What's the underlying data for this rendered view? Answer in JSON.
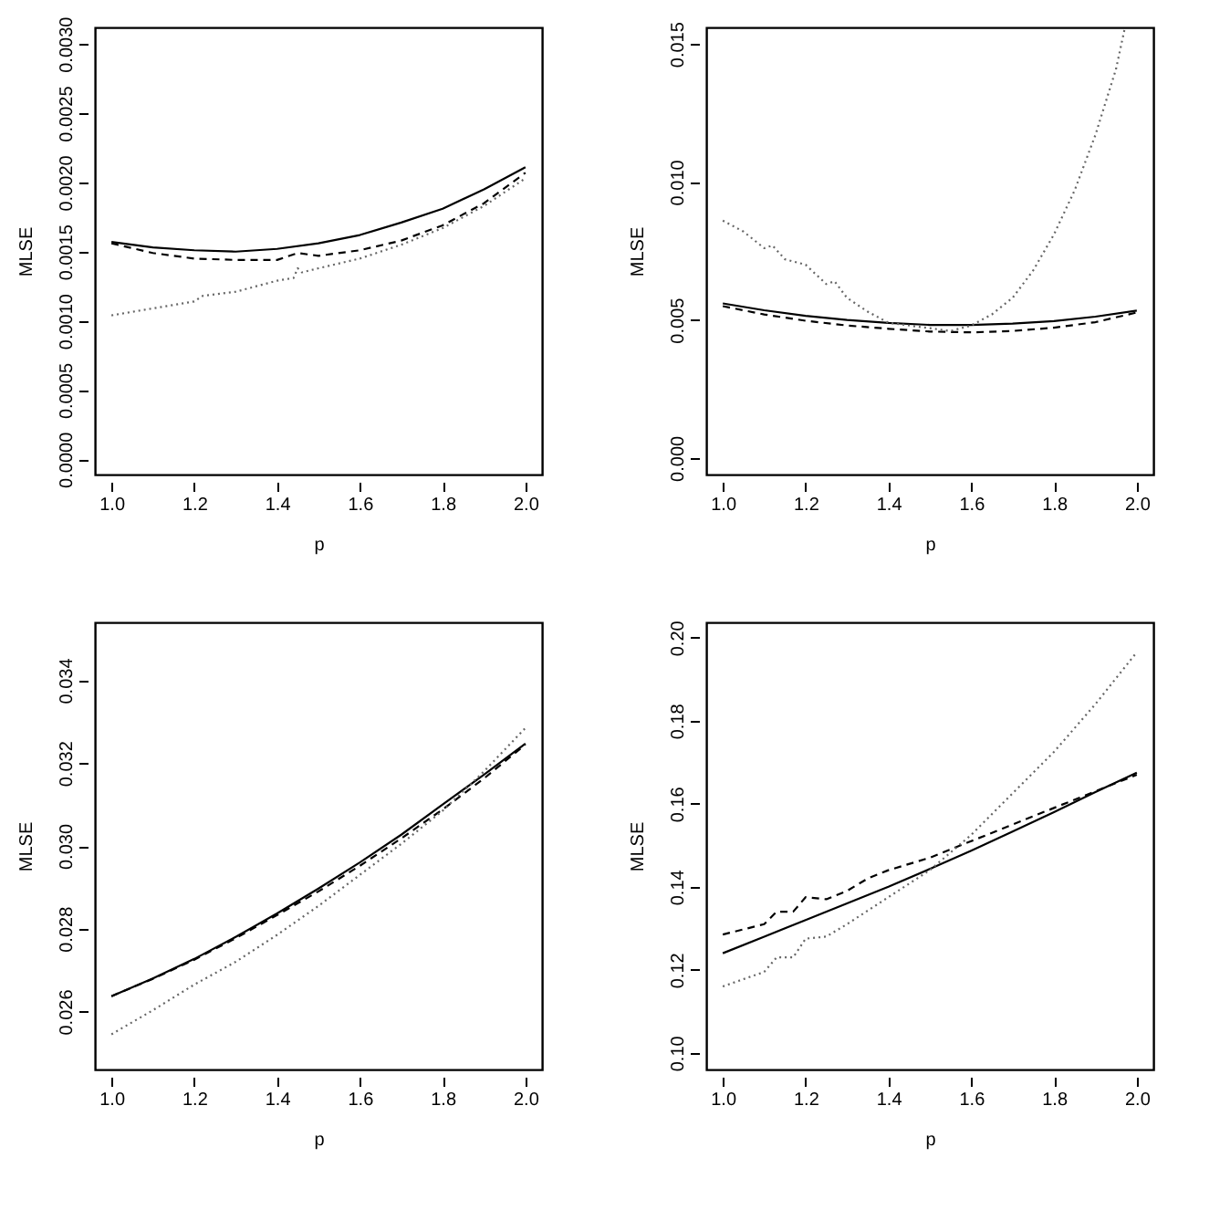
{
  "chart_data": [
    {
      "type": "line",
      "xlabel": "p",
      "ylabel": "MLSE",
      "xlim": [
        0.96,
        2.04
      ],
      "ylim": [
        -0.00011,
        0.00312
      ],
      "xticks": [
        {
          "value": 1.0,
          "label": "1.0"
        },
        {
          "value": 1.2,
          "label": "1.2"
        },
        {
          "value": 1.4,
          "label": "1.4"
        },
        {
          "value": 1.6,
          "label": "1.6"
        },
        {
          "value": 1.8,
          "label": "1.8"
        },
        {
          "value": 2.0,
          "label": "2.0"
        }
      ],
      "yticks": [
        {
          "value": 0,
          "label": "0.0000"
        },
        {
          "value": 0.0005,
          "label": "0.0005"
        },
        {
          "value": 0.001,
          "label": "0.0010"
        },
        {
          "value": 0.0015,
          "label": "0.0015"
        },
        {
          "value": 0.002,
          "label": "0.0020"
        },
        {
          "value": 0.0025,
          "label": "0.0025"
        },
        {
          "value": 0.003,
          "label": "0.0030"
        }
      ],
      "grid": false,
      "legend": false,
      "marker": "none",
      "series": [
        {
          "color": "#000000",
          "line_style": "solid",
          "x": [
            1.0,
            1.1,
            1.2,
            1.3,
            1.4,
            1.5,
            1.6,
            1.7,
            1.8,
            1.9,
            2.0
          ],
          "values": [
            0.00157,
            0.00153,
            0.00151,
            0.0015,
            0.00152,
            0.00156,
            0.00162,
            0.00171,
            0.00181,
            0.00195,
            0.00211
          ]
        },
        {
          "color": "#000000",
          "line_style": "dashed",
          "x": [
            1.0,
            1.1,
            1.2,
            1.3,
            1.4,
            1.45,
            1.5,
            1.6,
            1.7,
            1.8,
            1.9,
            2.0
          ],
          "values": [
            0.00156,
            0.00149,
            0.00145,
            0.00144,
            0.00144,
            0.00149,
            0.00147,
            0.00151,
            0.00158,
            0.00169,
            0.00185,
            0.00207
          ]
        },
        {
          "color": "#666666",
          "line_style": "dotted",
          "x": [
            1.0,
            1.1,
            1.2,
            1.22,
            1.3,
            1.4,
            1.44,
            1.45,
            1.46,
            1.5,
            1.6,
            1.7,
            1.8,
            1.9,
            2.0
          ],
          "values": [
            0.00104,
            0.00109,
            0.00114,
            0.00118,
            0.00121,
            0.00129,
            0.00131,
            0.00138,
            0.00135,
            0.00138,
            0.00145,
            0.00155,
            0.00167,
            0.00183,
            0.00203
          ]
        }
      ]
    },
    {
      "type": "line",
      "xlabel": "p",
      "ylabel": "MLSE",
      "xlim": [
        0.96,
        2.04
      ],
      "ylim": [
        -0.0006,
        0.0156
      ],
      "xticks": [
        {
          "value": 1.0,
          "label": "1.0"
        },
        {
          "value": 1.2,
          "label": "1.2"
        },
        {
          "value": 1.4,
          "label": "1.4"
        },
        {
          "value": 1.6,
          "label": "1.6"
        },
        {
          "value": 1.8,
          "label": "1.8"
        },
        {
          "value": 2.0,
          "label": "2.0"
        }
      ],
      "yticks": [
        {
          "value": 0,
          "label": "0.000"
        },
        {
          "value": 0.005,
          "label": "0.005"
        },
        {
          "value": 0.01,
          "label": "0.010"
        },
        {
          "value": 0.015,
          "label": "0.015"
        }
      ],
      "grid": false,
      "legend": false,
      "marker": "none",
      "series": [
        {
          "color": "#000000",
          "line_style": "solid",
          "x": [
            1.0,
            1.1,
            1.2,
            1.3,
            1.4,
            1.5,
            1.6,
            1.7,
            1.8,
            1.9,
            2.0
          ],
          "values": [
            0.0056,
            0.00535,
            0.00515,
            0.005,
            0.00489,
            0.00482,
            0.00482,
            0.00487,
            0.00496,
            0.00512,
            0.00534
          ]
        },
        {
          "color": "#000000",
          "line_style": "dashed",
          "x": [
            1.0,
            1.1,
            1.2,
            1.3,
            1.4,
            1.5,
            1.6,
            1.7,
            1.8,
            1.9,
            2.0
          ],
          "values": [
            0.0055,
            0.0052,
            0.00497,
            0.0048,
            0.00468,
            0.00458,
            0.00455,
            0.0046,
            0.00472,
            0.00492,
            0.00527
          ]
        },
        {
          "color": "#666666",
          "line_style": "dotted",
          "x": [
            1.0,
            1.05,
            1.1,
            1.12,
            1.15,
            1.2,
            1.25,
            1.27,
            1.3,
            1.35,
            1.4,
            1.5,
            1.55,
            1.6,
            1.65,
            1.7,
            1.75,
            1.8,
            1.85,
            1.9,
            1.95,
            1.97
          ],
          "values": [
            0.0086,
            0.0082,
            0.0076,
            0.0077,
            0.0072,
            0.007,
            0.0063,
            0.0064,
            0.0058,
            0.0053,
            0.0049,
            0.0047,
            0.0046,
            0.0048,
            0.0052,
            0.0058,
            0.0068,
            0.0081,
            0.0097,
            0.0117,
            0.0141,
            0.0155
          ]
        }
      ]
    },
    {
      "type": "line",
      "xlabel": "p",
      "ylabel": "MLSE",
      "xlim": [
        0.96,
        2.04
      ],
      "ylim": [
        0.0246,
        0.0354
      ],
      "xticks": [
        {
          "value": 1.0,
          "label": "1.0"
        },
        {
          "value": 1.2,
          "label": "1.2"
        },
        {
          "value": 1.4,
          "label": "1.4"
        },
        {
          "value": 1.6,
          "label": "1.6"
        },
        {
          "value": 1.8,
          "label": "1.8"
        },
        {
          "value": 2.0,
          "label": "2.0"
        }
      ],
      "yticks": [
        0.026,
        0.028,
        {
          "value": 0.03,
          "label": "0.030"
        },
        0.032,
        0.034
      ],
      "grid": false,
      "legend": false,
      "marker": "none",
      "series": [
        {
          "color": "#000000",
          "line_style": "solid",
          "x": [
            1.0,
            1.1,
            1.2,
            1.3,
            1.4,
            1.5,
            1.6,
            1.7,
            1.8,
            1.9,
            2.0
          ],
          "values": [
            0.02637,
            0.0268,
            0.02727,
            0.0278,
            0.02837,
            0.02897,
            0.0296,
            0.03027,
            0.031,
            0.03172,
            0.03247
          ]
        },
        {
          "color": "#000000",
          "line_style": "dashed",
          "x": [
            1.0,
            1.1,
            1.2,
            1.3,
            1.4,
            1.5,
            1.6,
            1.7,
            1.8,
            1.9,
            2.0
          ],
          "values": [
            0.02637,
            0.02679,
            0.02725,
            0.02777,
            0.02833,
            0.0289,
            0.02952,
            0.03018,
            0.03088,
            0.03163,
            0.03245
          ]
        },
        {
          "color": "#666666",
          "line_style": "dotted",
          "x": [
            1.0,
            1.1,
            1.2,
            1.3,
            1.4,
            1.5,
            1.6,
            1.7,
            1.8,
            1.9,
            2.0
          ],
          "values": [
            0.02545,
            0.02603,
            0.02665,
            0.0272,
            0.02785,
            0.02855,
            0.0293,
            0.03005,
            0.03085,
            0.0318,
            0.03285
          ]
        }
      ]
    },
    {
      "type": "line",
      "xlabel": "p",
      "ylabel": "MLSE",
      "xlim": [
        0.96,
        2.04
      ],
      "ylim": [
        0.096,
        0.2037
      ],
      "xticks": [
        {
          "value": 1.0,
          "label": "1.0"
        },
        {
          "value": 1.2,
          "label": "1.2"
        },
        {
          "value": 1.4,
          "label": "1.4"
        },
        {
          "value": 1.6,
          "label": "1.6"
        },
        {
          "value": 1.8,
          "label": "1.8"
        },
        {
          "value": 2.0,
          "label": "2.0"
        }
      ],
      "yticks": [
        {
          "value": 0.1,
          "label": "0.10"
        },
        0.12,
        0.14,
        0.16,
        0.18,
        {
          "value": 0.2,
          "label": "0.20"
        }
      ],
      "grid": false,
      "legend": false,
      "marker": "none",
      "series": [
        {
          "color": "#000000",
          "line_style": "solid",
          "x": [
            1.0,
            1.1,
            1.2,
            1.3,
            1.4,
            1.5,
            1.6,
            1.7,
            1.8,
            1.9,
            2.0
          ],
          "values": [
            0.124,
            0.128,
            0.132,
            0.136,
            0.14,
            0.1443,
            0.1487,
            0.1533,
            0.158,
            0.1628,
            0.1675
          ]
        },
        {
          "color": "#000000",
          "line_style": "dashed",
          "x": [
            1.0,
            1.1,
            1.13,
            1.17,
            1.2,
            1.25,
            1.3,
            1.35,
            1.4,
            1.5,
            1.6,
            1.7,
            1.8,
            1.9,
            2.0
          ],
          "values": [
            0.1285,
            0.131,
            0.134,
            0.134,
            0.1375,
            0.137,
            0.139,
            0.142,
            0.144,
            0.147,
            0.151,
            0.155,
            0.159,
            0.163,
            0.167
          ]
        },
        {
          "color": "#666666",
          "line_style": "dotted",
          "x": [
            1.0,
            1.1,
            1.13,
            1.17,
            1.2,
            1.25,
            1.3,
            1.4,
            1.5,
            1.6,
            1.7,
            1.8,
            1.9,
            2.0
          ],
          "values": [
            0.116,
            0.1195,
            0.123,
            0.123,
            0.1275,
            0.128,
            0.131,
            0.1375,
            0.144,
            0.1525,
            0.1625,
            0.1725,
            0.184,
            0.1965
          ]
        }
      ]
    }
  ]
}
